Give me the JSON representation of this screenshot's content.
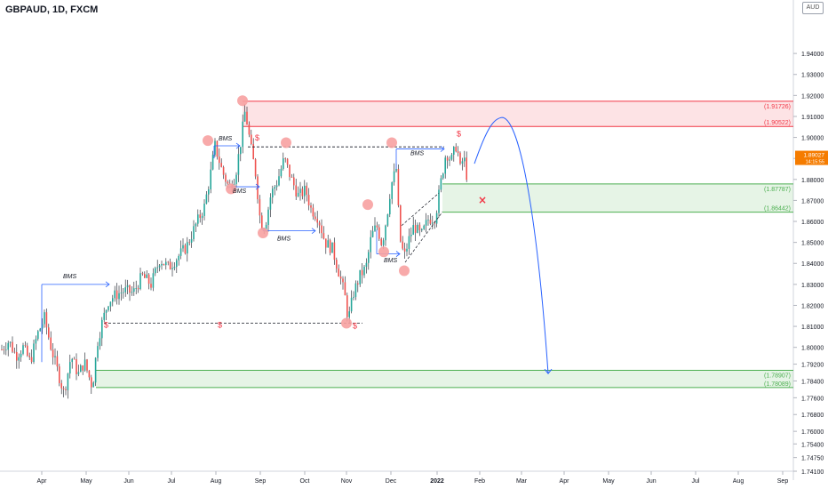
{
  "header": {
    "title": "GBPAUD, 1D, FXCM",
    "axis_mode": "AUD"
  },
  "chart_data": {
    "type": "candlestick",
    "symbol": "GBPAUD",
    "timeframe": "1D",
    "broker": "FXCM",
    "ylim": [
      1.741,
      1.9625
    ],
    "price_axis_position": "right",
    "y_ticks": [
      "1.94000",
      "1.93000",
      "1.92000",
      "1.91000",
      "1.90000",
      "1.89000",
      "1.88000",
      "1.87000",
      "1.86000",
      "1.85000",
      "1.84000",
      "1.83000",
      "1.82000",
      "1.81000",
      "1.80000",
      "1.79200",
      "1.78400",
      "1.77600",
      "1.76800",
      "1.76000",
      "1.75400",
      "1.74750",
      "1.74100"
    ],
    "x_ticks": [
      "Apr",
      "May",
      "Jun",
      "Jul",
      "Aug",
      "Sep",
      "Oct",
      "Nov",
      "Dec",
      "2022",
      "Feb",
      "Mar",
      "Apr",
      "May",
      "Jun",
      "Jul",
      "Aug",
      "Sep"
    ],
    "current_price": "1.89027",
    "current_sub": "14:15:55",
    "zones": [
      {
        "type": "resistance",
        "top": 1.91726,
        "bottom": 1.90522,
        "top_label": "(1.91726)",
        "bottom_label": "(1.90522)",
        "from": "Aug",
        "color": "#f23645"
      },
      {
        "type": "support",
        "top": 1.87787,
        "bottom": 1.86442,
        "top_label": "(1.87787)",
        "bottom_label": "(1.86442)",
        "from": "2022",
        "color": "#4caf50"
      },
      {
        "type": "support",
        "top": 1.78907,
        "bottom": 1.78089,
        "top_label": "(1.78907)",
        "bottom_label": "(1.78089)",
        "from": "May",
        "color": "#4caf50"
      }
    ],
    "annotations": [
      {
        "text": "BMS",
        "x": "May",
        "y": 1.833
      },
      {
        "text": "BMS",
        "x": "Aug",
        "y": 1.8985
      },
      {
        "text": "BMS",
        "x": "Aug",
        "y": 1.8735
      },
      {
        "text": "BMS",
        "x": "Sep",
        "y": 1.851
      },
      {
        "text": "BMS",
        "x": "Dec",
        "y": 1.8915
      },
      {
        "text": "BMS",
        "x": "Dec",
        "y": 1.8405
      },
      {
        "text": "$",
        "x": "May",
        "y": 1.8095
      },
      {
        "text": "$",
        "x": "Sep",
        "y": 1.8095
      },
      {
        "text": "$",
        "x": "Aug",
        "y": 1.8985
      },
      {
        "text": "$",
        "x": "Nov",
        "y": 1.809
      },
      {
        "text": "$",
        "x": "2022",
        "y": 1.9005
      }
    ],
    "projection": {
      "from_price": 1.8875,
      "peak_price": 1.9095,
      "target_price": 1.7875,
      "direction": "down"
    },
    "colors": {
      "up": "#26a69a",
      "down": "#ef5350",
      "wick": "#131722",
      "bms_arrow": "#2962ff",
      "swing_marker": "#f7a1a1"
    }
  }
}
